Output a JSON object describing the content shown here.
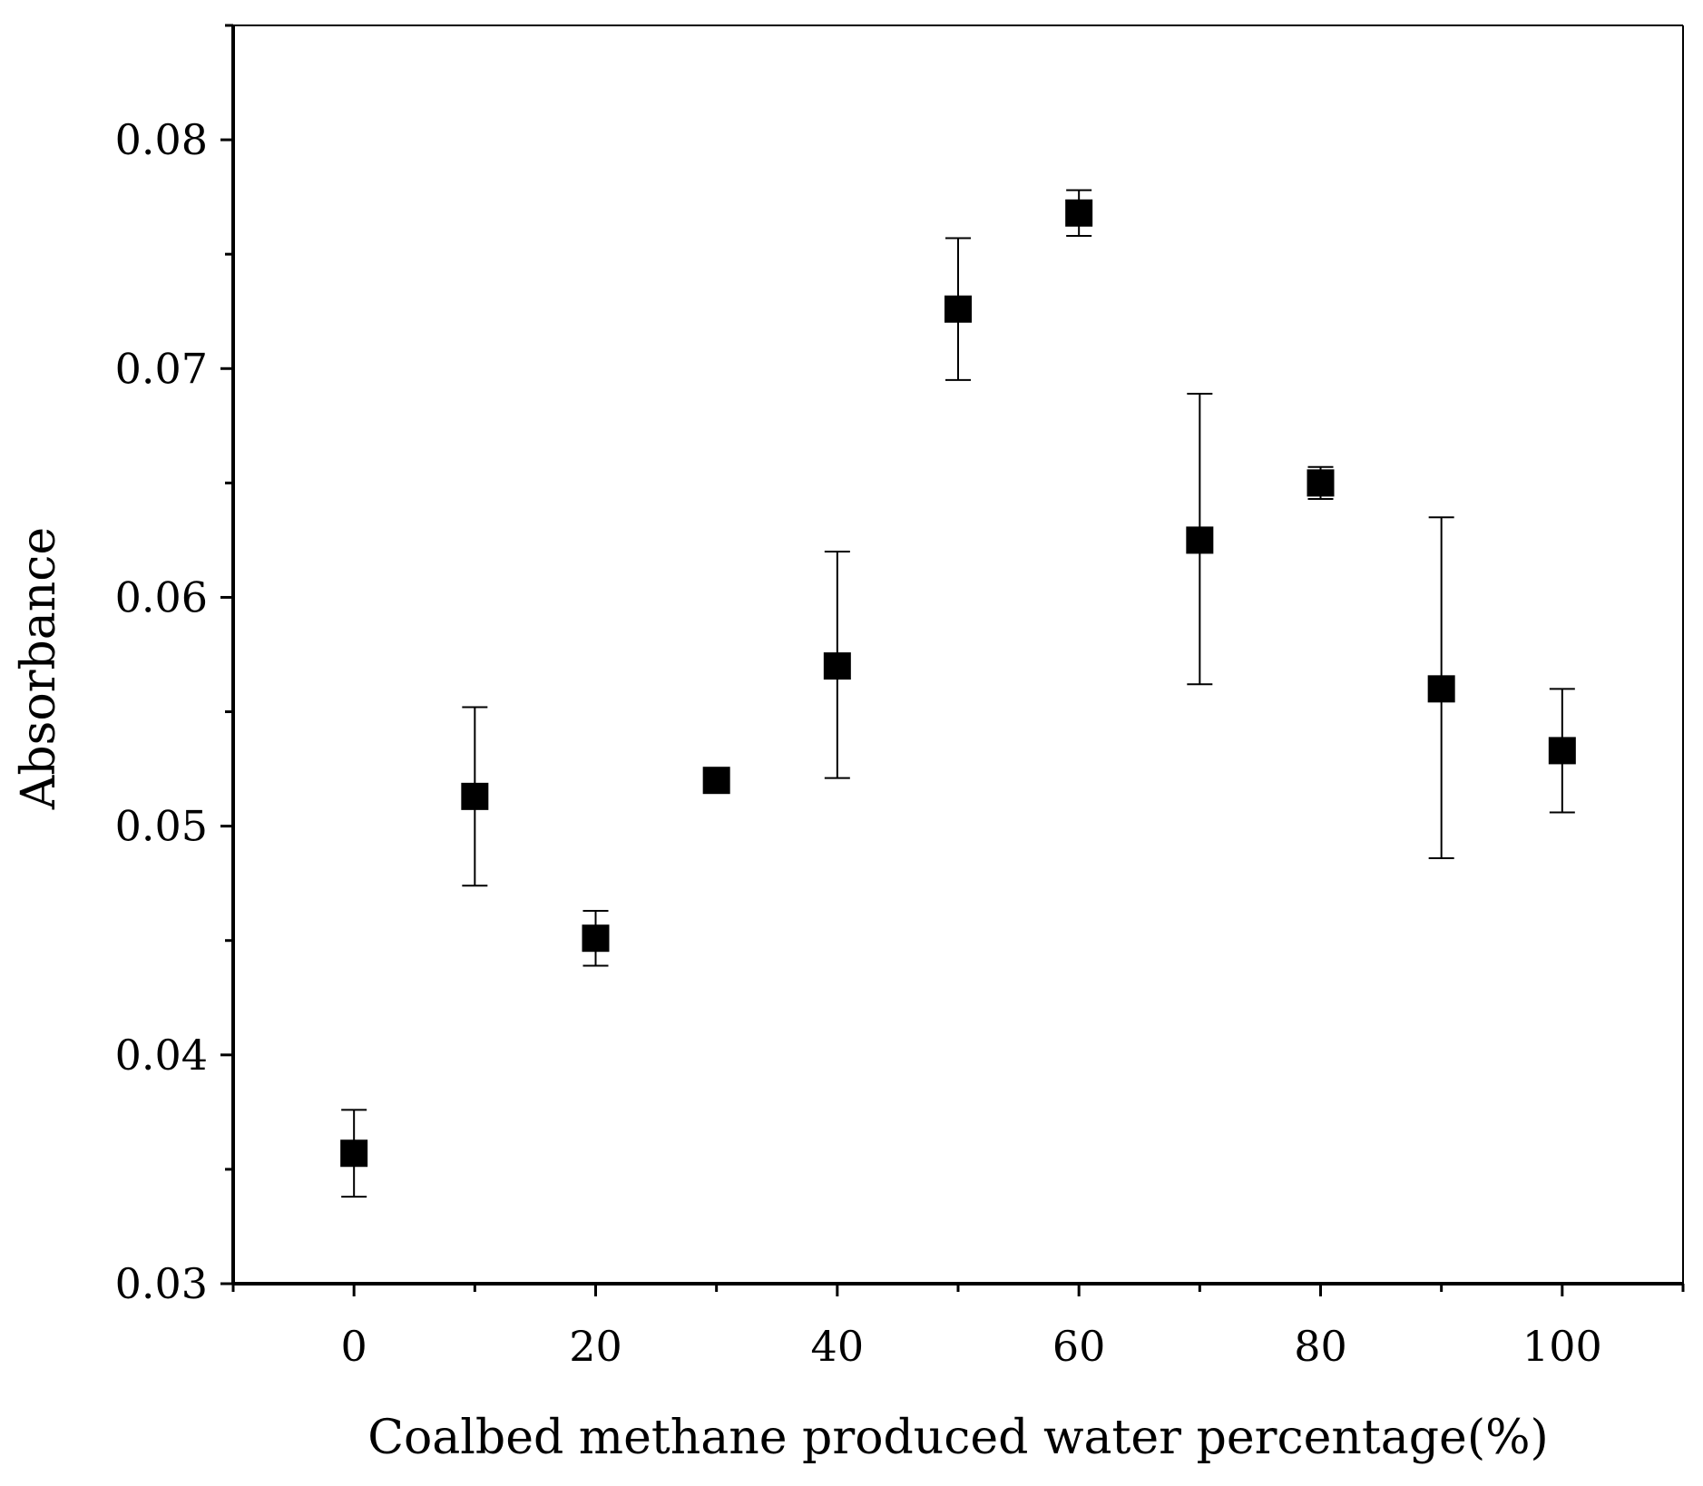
{
  "chart_data": {
    "type": "scatter",
    "title": "",
    "xlabel": "Coalbed methane produced water percentage(%)",
    "ylabel": "Absorbance",
    "xlim": [
      -10,
      110
    ],
    "ylim": [
      0.03,
      0.085
    ],
    "x_ticks": [
      0,
      20,
      40,
      60,
      80,
      100
    ],
    "x_tick_labels": [
      "0",
      "20",
      "40",
      "60",
      "80",
      "100"
    ],
    "x_minor_ticks": [
      10,
      30,
      50,
      70,
      90
    ],
    "y_ticks": [
      0.03,
      0.04,
      0.05,
      0.06,
      0.07,
      0.08
    ],
    "y_tick_labels": [
      "0.03",
      "0.04",
      "0.05",
      "0.06",
      "0.07",
      "0.08"
    ],
    "y_minor_ticks": [
      0.035,
      0.045,
      0.055,
      0.065,
      0.075
    ],
    "grid": false,
    "marker": "square",
    "marker_color": "#000000",
    "series": [
      {
        "name": "Absorbance",
        "x": [
          0,
          10,
          20,
          30,
          40,
          50,
          60,
          70,
          80,
          90,
          100
        ],
        "y": [
          0.0357,
          0.0513,
          0.0451,
          0.052,
          0.057,
          0.0726,
          0.0768,
          0.0625,
          0.065,
          0.056,
          0.0533
        ],
        "error_low": [
          0.0338,
          0.0474,
          0.0439,
          0.0516,
          0.0521,
          0.0695,
          0.0758,
          0.0562,
          0.0643,
          0.0486,
          0.0506
        ],
        "error_high": [
          0.0376,
          0.0552,
          0.0463,
          0.0524,
          0.062,
          0.0757,
          0.0778,
          0.0689,
          0.0657,
          0.0635,
          0.056
        ]
      }
    ]
  }
}
